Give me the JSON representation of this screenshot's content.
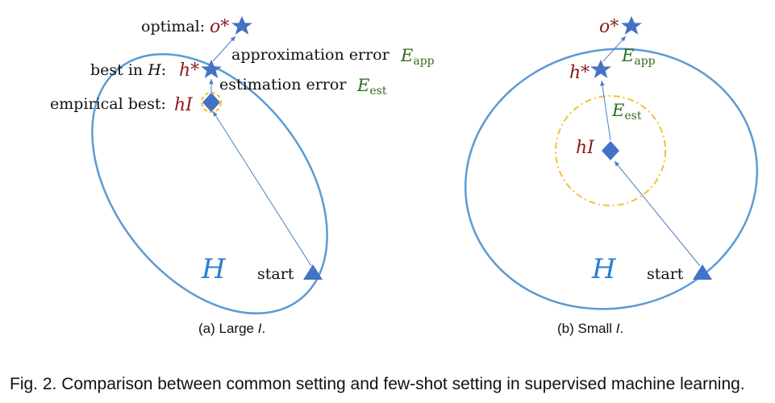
{
  "figure": {
    "caption": "Fig. 2.  Comparison between common setting and few-shot setting in supervised machine learning."
  },
  "panel_a": {
    "subcaption_prefix": "(a)  Large ",
    "subcaption_var": "I",
    "subcaption_suffix": ".",
    "optimal_label": "optimal:",
    "optimal_symbol": "o*",
    "best_label_prefix": "best in ",
    "best_label_set": "H",
    "best_label_colon": ":",
    "best_symbol": "h*",
    "empirical_label": "empirical best:",
    "empirical_symbol": "hI",
    "approx_label": "approximation error",
    "approx_symbol": "E",
    "approx_sub": "app",
    "est_label": "estimation error",
    "est_symbol": "E",
    "est_sub": "est",
    "hypothesis_space": "H",
    "start_label": "start"
  },
  "panel_b": {
    "subcaption_prefix": "(b)  Small ",
    "subcaption_var": "I",
    "subcaption_suffix": ".",
    "optimal_symbol": "o*",
    "best_symbol": "h*",
    "empirical_symbol": "hI",
    "approx_symbol": "E",
    "approx_sub": "app",
    "est_symbol": "E",
    "est_sub": "est",
    "hypothesis_space": "H",
    "start_label": "start"
  },
  "colors": {
    "ellipse": "#5b9bd5",
    "marker": "#4472c4",
    "arrow": "#4a7fc0",
    "dash_circle": "#f2c037",
    "math_red": "#8b1a1a",
    "math_green": "#2e6b1e",
    "math_blue": "#2a7fd4"
  }
}
